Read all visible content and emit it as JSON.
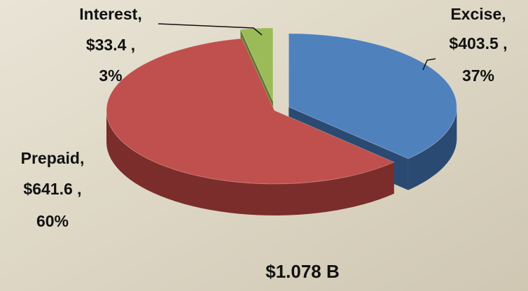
{
  "chart_data": {
    "type": "pie3d",
    "categories": [
      "Excise,",
      "Prepaid,",
      "Interest,"
    ],
    "values": [
      403.5,
      641.6,
      33.4
    ],
    "value_labels": [
      "$403.5 ,",
      "$641.6 ,",
      "$33.4 ,"
    ],
    "percentages": [
      37,
      60,
      3
    ],
    "percentage_labels": [
      "37%",
      "60%",
      "3%"
    ],
    "colors": [
      "#4f81bd",
      "#c0504d",
      "#9bbb59"
    ],
    "side_colors": [
      "#2b4a72",
      "#7a2d2a",
      "#5d7a2c"
    ],
    "annotation": "$1.078 B"
  }
}
